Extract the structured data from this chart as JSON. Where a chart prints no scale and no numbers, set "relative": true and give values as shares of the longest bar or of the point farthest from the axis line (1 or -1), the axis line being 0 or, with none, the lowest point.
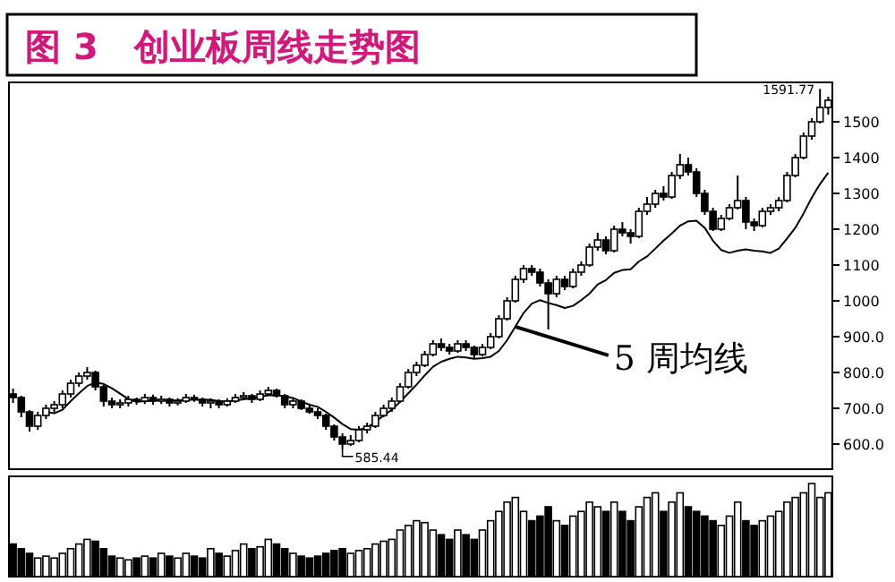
{
  "chart_data": [
    {
      "type": "candlestick",
      "title": "图 3　创业板周线走势图",
      "categories": [
        null,
        null,
        null,
        null,
        null,
        null,
        null,
        null,
        null,
        null,
        null,
        null,
        null,
        null,
        null,
        null,
        null,
        null,
        null,
        null,
        null,
        null,
        null,
        null,
        null,
        null,
        null,
        null,
        null,
        null,
        null,
        null,
        null,
        null,
        null,
        null,
        null,
        null,
        null,
        null,
        null,
        null,
        null,
        null,
        null,
        null,
        null,
        null,
        null,
        null,
        null,
        null,
        null,
        null,
        null,
        null,
        null,
        null,
        null,
        null,
        null,
        null,
        null,
        null,
        null,
        null,
        null,
        null,
        null,
        null,
        null,
        null,
        null,
        null,
        null,
        null,
        null,
        null,
        null,
        null,
        null,
        null,
        null,
        null,
        null,
        null,
        null,
        null,
        null,
        null,
        null,
        null,
        null,
        null,
        null,
        null,
        null,
        null,
        null,
        null
      ],
      "ohlc": [
        [
          740,
          755,
          715,
          730
        ],
        [
          730,
          735,
          675,
          690
        ],
        [
          690,
          695,
          635,
          650
        ],
        [
          650,
          690,
          640,
          680
        ],
        [
          680,
          710,
          670,
          700
        ],
        [
          700,
          720,
          690,
          710
        ],
        [
          710,
          750,
          700,
          740
        ],
        [
          740,
          780,
          730,
          770
        ],
        [
          770,
          800,
          760,
          790
        ],
        [
          790,
          815,
          780,
          800
        ],
        [
          800,
          805,
          750,
          760
        ],
        [
          760,
          765,
          705,
          720
        ],
        [
          720,
          730,
          700,
          710
        ],
        [
          710,
          725,
          700,
          715
        ],
        [
          715,
          735,
          705,
          725
        ],
        [
          725,
          730,
          710,
          720
        ],
        [
          720,
          740,
          712,
          730
        ],
        [
          730,
          738,
          710,
          720
        ],
        [
          720,
          735,
          712,
          725
        ],
        [
          725,
          730,
          705,
          715
        ],
        [
          715,
          728,
          708,
          720
        ],
        [
          720,
          740,
          715,
          730
        ],
        [
          730,
          738,
          718,
          725
        ],
        [
          725,
          730,
          705,
          715
        ],
        [
          715,
          728,
          700,
          720
        ],
        [
          720,
          725,
          700,
          710
        ],
        [
          710,
          728,
          705,
          720
        ],
        [
          720,
          740,
          715,
          730
        ],
        [
          730,
          745,
          725,
          735
        ],
        [
          735,
          740,
          715,
          725
        ],
        [
          725,
          750,
          720,
          740
        ],
        [
          740,
          760,
          735,
          750
        ],
        [
          750,
          755,
          730,
          735
        ],
        [
          735,
          740,
          700,
          710
        ],
        [
          710,
          730,
          700,
          720
        ],
        [
          720,
          725,
          695,
          700
        ],
        [
          700,
          710,
          685,
          690
        ],
        [
          690,
          700,
          670,
          680
        ],
        [
          680,
          685,
          640,
          650
        ],
        [
          650,
          655,
          610,
          620
        ],
        [
          620,
          630,
          585.44,
          600
        ],
        [
          600,
          625,
          595,
          610
        ],
        [
          610,
          650,
          605,
          640
        ],
        [
          640,
          660,
          630,
          650
        ],
        [
          650,
          690,
          645,
          680
        ],
        [
          680,
          710,
          675,
          700
        ],
        [
          700,
          730,
          690,
          720
        ],
        [
          720,
          770,
          715,
          760
        ],
        [
          760,
          810,
          755,
          800
        ],
        [
          800,
          830,
          790,
          820
        ],
        [
          820,
          860,
          815,
          850
        ],
        [
          850,
          890,
          845,
          880
        ],
        [
          880,
          895,
          860,
          870
        ],
        [
          870,
          880,
          850,
          860
        ],
        [
          860,
          890,
          855,
          880
        ],
        [
          880,
          890,
          860,
          870
        ],
        [
          870,
          875,
          840,
          850
        ],
        [
          850,
          880,
          845,
          870
        ],
        [
          870,
          910,
          865,
          900
        ],
        [
          900,
          960,
          895,
          950
        ],
        [
          950,
          1010,
          945,
          1000
        ],
        [
          1000,
          1070,
          995,
          1060
        ],
        [
          1060,
          1100,
          1050,
          1090
        ],
        [
          1090,
          1100,
          1070,
          1080
        ],
        [
          1080,
          1090,
          1040,
          1050
        ],
        [
          1050,
          1060,
          920,
          1020
        ],
        [
          1020,
          1070,
          1010,
          1060
        ],
        [
          1060,
          1070,
          1030,
          1040
        ],
        [
          1040,
          1090,
          1035,
          1080
        ],
        [
          1080,
          1110,
          1070,
          1100
        ],
        [
          1100,
          1160,
          1095,
          1150
        ],
        [
          1150,
          1190,
          1140,
          1170
        ],
        [
          1170,
          1180,
          1130,
          1140
        ],
        [
          1140,
          1210,
          1135,
          1200
        ],
        [
          1200,
          1220,
          1180,
          1190
        ],
        [
          1190,
          1200,
          1160,
          1180
        ],
        [
          1180,
          1260,
          1175,
          1250
        ],
        [
          1250,
          1290,
          1240,
          1270
        ],
        [
          1270,
          1310,
          1260,
          1300
        ],
        [
          1300,
          1320,
          1280,
          1290
        ],
        [
          1290,
          1360,
          1285,
          1350
        ],
        [
          1350,
          1410,
          1340,
          1380
        ],
        [
          1380,
          1400,
          1350,
          1360
        ],
        [
          1360,
          1370,
          1290,
          1300
        ],
        [
          1300,
          1310,
          1240,
          1250
        ],
        [
          1250,
          1260,
          1195,
          1200
        ],
        [
          1200,
          1240,
          1195,
          1230
        ],
        [
          1230,
          1270,
          1225,
          1260
        ],
        [
          1260,
          1350,
          1255,
          1280
        ],
        [
          1280,
          1290,
          1200,
          1220
        ],
        [
          1220,
          1230,
          1195,
          1210
        ],
        [
          1210,
          1260,
          1205,
          1250
        ],
        [
          1250,
          1270,
          1240,
          1260
        ],
        [
          1260,
          1290,
          1250,
          1280
        ],
        [
          1280,
          1360,
          1275,
          1350
        ],
        [
          1350,
          1410,
          1345,
          1400
        ],
        [
          1400,
          1470,
          1395,
          1460
        ],
        [
          1460,
          1510,
          1450,
          1500
        ],
        [
          1500,
          1591.77,
          1495,
          1540
        ],
        [
          1540,
          1570,
          1520,
          1560
        ]
      ],
      "series": [
        {
          "type": "line",
          "color": "#000000",
          "values": [
            null,
            null,
            null,
            null,
            690,
            686,
            696,
            720,
            742,
            762,
            772,
            768,
            756,
            741,
            726,
            718,
            720,
            722,
            724,
            722,
            722,
            724,
            724,
            724,
            724,
            720,
            719,
            722,
            725,
            728,
            732,
            736,
            736,
            733,
            729,
            719,
            710,
            704,
            690,
            674,
            656,
            642,
            640,
            646,
            662,
            680,
            696,
            718,
            742,
            766,
            792,
            816,
            830,
            838,
            844,
            842,
            838,
            840,
            844,
            860,
            890,
            928,
            966,
            992,
            1002,
            994,
            988,
            980,
            986,
            1002,
            1020,
            1046,
            1058,
            1078,
            1086,
            1088,
            1110,
            1124,
            1146,
            1168,
            1188,
            1210,
            1222,
            1224,
            1204,
            1168,
            1142,
            1134,
            1140,
            1144,
            1140,
            1138,
            1134,
            1146,
            1174,
            1204,
            1244,
            1288,
            1326,
            1358
          ]
        }
      ],
      "color": "#000000",
      "ylim": [
        530,
        1610
      ],
      "yticks": [
        {
          "value": 600,
          "label": "600.0"
        },
        {
          "value": 700,
          "label": "700.0"
        },
        {
          "value": 800,
          "label": "800.0"
        },
        {
          "value": 900,
          "label": "900.0"
        },
        1000,
        1100,
        1200,
        1300,
        1400,
        1500
      ],
      "annotations": [
        "1591.77",
        "585.44",
        "5 周均线"
      ]
    },
    {
      "type": "bar",
      "relative": true,
      "categories": [
        null,
        null,
        null,
        null,
        null,
        null,
        null,
        null,
        null,
        null,
        null,
        null,
        null,
        null,
        null,
        null,
        null,
        null,
        null,
        null,
        null,
        null,
        null,
        null,
        null,
        null,
        null,
        null,
        null,
        null,
        null,
        null,
        null,
        null,
        null,
        null,
        null,
        null,
        null,
        null,
        null,
        null,
        null,
        null,
        null,
        null,
        null,
        null,
        null,
        null,
        null,
        null,
        null,
        null,
        null,
        null,
        null,
        null,
        null,
        null,
        null,
        null,
        null,
        null,
        null,
        null,
        null,
        null,
        null,
        null,
        null,
        null,
        null,
        null,
        null,
        null,
        null,
        null,
        null,
        null,
        null,
        null,
        null,
        null,
        null,
        null,
        null,
        null,
        null,
        null,
        null,
        null,
        null,
        null,
        null,
        null,
        null,
        null,
        null,
        null
      ],
      "values": [
        0.35,
        0.3,
        0.25,
        0.2,
        0.22,
        0.2,
        0.25,
        0.3,
        0.35,
        0.4,
        0.38,
        0.3,
        0.22,
        0.2,
        0.18,
        0.2,
        0.22,
        0.2,
        0.25,
        0.22,
        0.2,
        0.25,
        0.22,
        0.2,
        0.3,
        0.25,
        0.22,
        0.28,
        0.35,
        0.3,
        0.32,
        0.4,
        0.35,
        0.3,
        0.25,
        0.22,
        0.2,
        0.22,
        0.25,
        0.28,
        0.3,
        0.25,
        0.28,
        0.3,
        0.35,
        0.38,
        0.4,
        0.5,
        0.55,
        0.6,
        0.58,
        0.5,
        0.45,
        0.4,
        0.5,
        0.45,
        0.4,
        0.5,
        0.6,
        0.7,
        0.8,
        0.85,
        0.7,
        0.6,
        0.65,
        0.75,
        0.6,
        0.55,
        0.65,
        0.7,
        0.8,
        0.75,
        0.7,
        0.8,
        0.7,
        0.6,
        0.75,
        0.85,
        0.9,
        0.7,
        0.8,
        0.9,
        0.75,
        0.7,
        0.65,
        0.6,
        0.55,
        0.65,
        0.8,
        0.6,
        0.55,
        0.6,
        0.65,
        0.7,
        0.8,
        0.85,
        0.9,
        1.0,
        0.85,
        0.9
      ],
      "colors": [
        "#000000",
        "#000000",
        "#000000",
        "#ffffff",
        "#ffffff",
        "#ffffff",
        "#ffffff",
        "#ffffff",
        "#ffffff",
        "#ffffff",
        "#000000",
        "#000000",
        "#000000",
        "#ffffff",
        "#ffffff",
        "#000000",
        "#ffffff",
        "#000000",
        "#ffffff",
        "#000000",
        "#ffffff",
        "#ffffff",
        "#000000",
        "#000000",
        "#ffffff",
        "#000000",
        "#ffffff",
        "#ffffff",
        "#ffffff",
        "#000000",
        "#ffffff",
        "#ffffff",
        "#000000",
        "#000000",
        "#ffffff",
        "#000000",
        "#000000",
        "#000000",
        "#000000",
        "#000000",
        "#000000",
        "#ffffff",
        "#ffffff",
        "#ffffff",
        "#ffffff",
        "#ffffff",
        "#ffffff",
        "#ffffff",
        "#ffffff",
        "#ffffff",
        "#ffffff",
        "#ffffff",
        "#000000",
        "#000000",
        "#ffffff",
        "#000000",
        "#000000",
        "#ffffff",
        "#ffffff",
        "#ffffff",
        "#ffffff",
        "#ffffff",
        "#ffffff",
        "#000000",
        "#000000",
        "#000000",
        "#ffffff",
        "#000000",
        "#ffffff",
        "#ffffff",
        "#ffffff",
        "#ffffff",
        "#000000",
        "#ffffff",
        "#000000",
        "#000000",
        "#ffffff",
        "#ffffff",
        "#ffffff",
        "#000000",
        "#ffffff",
        "#ffffff",
        "#000000",
        "#000000",
        "#000000",
        "#000000",
        "#ffffff",
        "#ffffff",
        "#ffffff",
        "#000000",
        "#000000",
        "#ffffff",
        "#ffffff",
        "#ffffff",
        "#ffffff",
        "#ffffff",
        "#ffffff",
        "#ffffff",
        "#ffffff",
        "#ffffff"
      ]
    }
  ]
}
